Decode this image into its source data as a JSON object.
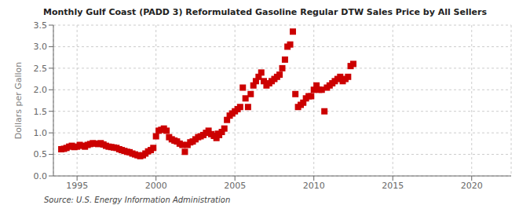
{
  "chart_data": {
    "type": "scatter",
    "title": "Monthly Gulf Coast (PADD 3) Reformulated Gasoline Regular DTW Sales Price by All Sellers",
    "ylabel": "Dollars per Gallon",
    "annotations": [
      "Source: U.S. Energy Information Administration"
    ],
    "color": "#cc0000",
    "marker": "square",
    "grid": true,
    "xlim": [
      1993.5,
      2022.5
    ],
    "xticks": [
      1995,
      2000,
      2005,
      2010,
      2015,
      2020
    ],
    "ylim": [
      0.0,
      3.5
    ],
    "yticks": [
      {
        "value": 0.0,
        "label": "0.0"
      },
      0.5,
      {
        "value": 1.0,
        "label": "1.0"
      },
      1.5,
      {
        "value": 2.0,
        "label": "2.0"
      },
      2.5,
      {
        "value": 3.0,
        "label": "3.0"
      },
      3.5
    ],
    "x": [
      1994.0,
      1994.17,
      1994.33,
      1994.5,
      1994.67,
      1994.83,
      1995.0,
      1995.17,
      1995.33,
      1995.5,
      1995.67,
      1995.83,
      1996.0,
      1996.17,
      1996.33,
      1996.5,
      1996.67,
      1996.83,
      1997.0,
      1997.17,
      1997.33,
      1997.5,
      1997.67,
      1997.83,
      1998.0,
      1998.17,
      1998.33,
      1998.5,
      1998.67,
      1998.83,
      1999.0,
      1999.17,
      1999.33,
      1999.5,
      1999.67,
      1999.83,
      2000.0,
      2000.17,
      2000.33,
      2000.5,
      2000.67,
      2000.83,
      2001.0,
      2001.17,
      2001.33,
      2001.5,
      2001.67,
      2001.83,
      2002.0,
      2002.17,
      2002.33,
      2002.5,
      2002.67,
      2002.83,
      2003.0,
      2003.17,
      2003.33,
      2003.5,
      2003.67,
      2003.83,
      2003.92,
      2004.0,
      2004.17,
      2004.33,
      2004.5,
      2004.67,
      2004.83,
      2005.0,
      2005.17,
      2005.33,
      2005.5,
      2005.67,
      2005.83,
      2006.0,
      2006.17,
      2006.33,
      2006.5,
      2006.67,
      2006.83,
      2007.0,
      2007.17,
      2007.33,
      2007.5,
      2007.67,
      2007.83,
      2008.0,
      2008.17,
      2008.33,
      2008.5,
      2008.67,
      2008.83,
      2009.0,
      2009.17,
      2009.33,
      2009.5,
      2009.67,
      2009.83,
      2010.0,
      2010.17,
      2010.33,
      2010.5,
      2010.67,
      2010.83,
      2011.0,
      2011.17,
      2011.33,
      2011.5,
      2011.67,
      2011.83,
      2012.0,
      2012.17,
      2012.33,
      2012.5
    ],
    "values": [
      0.62,
      0.63,
      0.65,
      0.68,
      0.7,
      0.67,
      0.68,
      0.72,
      0.7,
      0.68,
      0.72,
      0.74,
      0.76,
      0.75,
      0.74,
      0.76,
      0.73,
      0.7,
      0.68,
      0.67,
      0.66,
      0.65,
      0.62,
      0.6,
      0.58,
      0.56,
      0.55,
      0.52,
      0.5,
      0.48,
      0.46,
      0.48,
      0.52,
      0.57,
      0.6,
      0.65,
      0.92,
      1.05,
      1.07,
      1.1,
      1.05,
      0.9,
      0.85,
      0.82,
      0.8,
      0.75,
      0.72,
      0.56,
      0.72,
      0.78,
      0.8,
      0.85,
      0.9,
      0.92,
      0.95,
      1.0,
      1.05,
      0.97,
      0.93,
      0.88,
      0.98,
      0.95,
      1.02,
      1.1,
      1.3,
      1.4,
      1.45,
      1.5,
      1.55,
      1.6,
      2.05,
      1.8,
      1.6,
      1.9,
      2.1,
      2.2,
      2.3,
      2.4,
      2.2,
      2.1,
      2.15,
      2.2,
      2.25,
      2.3,
      2.35,
      2.5,
      2.7,
      3.0,
      3.05,
      3.35,
      1.9,
      1.6,
      1.65,
      1.7,
      1.8,
      1.85,
      1.85,
      2.0,
      2.1,
      2.0,
      2.0,
      1.5,
      2.05,
      2.1,
      2.15,
      2.2,
      2.25,
      2.3,
      2.2,
      2.25,
      2.3,
      2.55,
      2.6
    ]
  }
}
